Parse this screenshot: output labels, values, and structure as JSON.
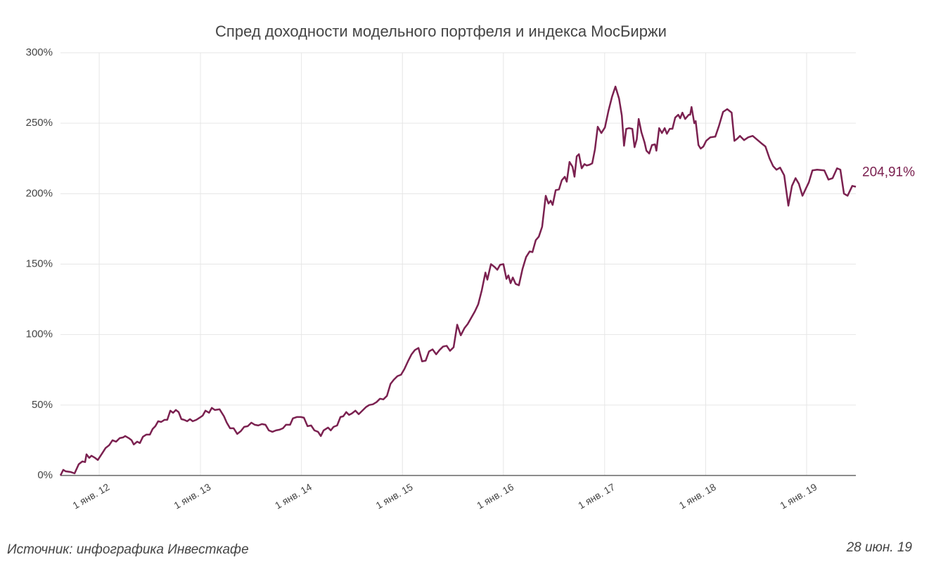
{
  "chart_data": {
    "type": "line",
    "title": "Спред доходности модельного портфеля и индекса МосБиржи",
    "source": "Источник: инфографика Инвесткафе",
    "date": "28 июн. 19",
    "grid": true,
    "xlim": [
      "2011-08-14",
      "2019-06-28"
    ],
    "xticks": [
      {
        "value": "2012-01-01",
        "label": "1 янв. 12"
      },
      {
        "value": "2013-01-01",
        "label": "1 янв. 13"
      },
      {
        "value": "2014-01-01",
        "label": "1 янв. 14"
      },
      {
        "value": "2015-01-01",
        "label": "1 янв. 15"
      },
      {
        "value": "2016-01-01",
        "label": "1 янв. 16"
      },
      {
        "value": "2017-01-01",
        "label": "1 янв. 17"
      },
      {
        "value": "2018-01-01",
        "label": "1 янв. 18"
      },
      {
        "value": "2019-01-01",
        "label": "1 янв. 19"
      }
    ],
    "ylim": [
      0,
      300
    ],
    "yticks": [
      {
        "value": 0,
        "label": "0%"
      },
      {
        "value": 50,
        "label": "50%"
      },
      {
        "value": 100,
        "label": "100%"
      },
      {
        "value": 150,
        "label": "150%"
      },
      {
        "value": 200,
        "label": "200%"
      },
      {
        "value": 250,
        "label": "250%"
      },
      {
        "value": 300,
        "label": "300%"
      }
    ],
    "x": [
      "2011-08-14",
      "2011-08-24",
      "2011-09-01",
      "2011-09-19",
      "2011-10-04",
      "2011-10-19",
      "2011-11-01",
      "2011-11-11",
      "2011-11-16",
      "2011-11-26",
      "2011-12-04",
      "2011-12-17",
      "2011-12-27",
      "2012-01-11",
      "2012-01-24",
      "2012-02-06",
      "2012-02-18",
      "2012-03-02",
      "2012-03-15",
      "2012-03-27",
      "2012-04-04",
      "2012-04-17",
      "2012-04-27",
      "2012-05-05",
      "2012-05-17",
      "2012-05-27",
      "2012-06-07",
      "2012-06-19",
      "2012-07-02",
      "2012-07-12",
      "2012-07-22",
      "2012-08-01",
      "2012-08-12",
      "2012-08-24",
      "2012-09-03",
      "2012-09-14",
      "2012-09-24",
      "2012-10-04",
      "2012-10-14",
      "2012-10-24",
      "2012-11-03",
      "2012-11-14",
      "2012-11-24",
      "2012-12-04",
      "2012-12-17",
      "2012-12-29",
      "2013-01-09",
      "2013-01-19",
      "2013-02-01",
      "2013-02-11",
      "2013-02-22",
      "2013-03-11",
      "2013-03-27",
      "2013-04-06",
      "2013-04-18",
      "2013-05-01",
      "2013-05-14",
      "2013-05-27",
      "2013-06-08",
      "2013-06-21",
      "2013-07-04",
      "2013-07-16",
      "2013-07-29",
      "2013-08-11",
      "2013-08-24",
      "2013-09-05",
      "2013-09-18",
      "2013-10-01",
      "2013-10-14",
      "2013-10-26",
      "2013-11-06",
      "2013-11-21",
      "2013-12-01",
      "2013-12-16",
      "2013-12-30",
      "2014-01-10",
      "2014-01-23",
      "2014-02-05",
      "2014-02-17",
      "2014-03-02",
      "2014-03-12",
      "2014-03-22",
      "2014-04-07",
      "2014-04-17",
      "2014-04-27",
      "2014-05-10",
      "2014-05-22",
      "2014-06-01",
      "2014-06-12",
      "2014-06-22",
      "2014-07-02",
      "2014-07-15",
      "2014-07-27",
      "2014-08-09",
      "2014-08-22",
      "2014-09-03",
      "2014-09-16",
      "2014-09-29",
      "2014-10-12",
      "2014-10-24",
      "2014-11-06",
      "2014-11-19",
      "2014-12-01",
      "2014-12-14",
      "2014-12-27",
      "2015-01-08",
      "2015-01-21",
      "2015-02-03",
      "2015-02-15",
      "2015-02-28",
      "2015-03-13",
      "2015-03-26",
      "2015-04-07",
      "2015-04-20",
      "2015-05-03",
      "2015-05-15",
      "2015-05-28",
      "2015-06-10",
      "2015-06-22",
      "2015-07-05",
      "2015-07-18",
      "2015-07-31",
      "2015-08-13",
      "2015-08-25",
      "2015-09-07",
      "2015-09-20",
      "2015-10-02",
      "2015-10-15",
      "2015-10-28",
      "2015-11-04",
      "2015-11-17",
      "2015-11-30",
      "2015-12-10",
      "2015-12-20",
      "2016-01-01",
      "2016-01-12",
      "2016-01-19",
      "2016-01-27",
      "2016-02-04",
      "2016-02-14",
      "2016-02-26",
      "2016-03-10",
      "2016-03-23",
      "2016-04-05",
      "2016-04-15",
      "2016-04-27",
      "2016-05-08",
      "2016-05-20",
      "2016-06-02",
      "2016-06-12",
      "2016-06-20",
      "2016-06-27",
      "2016-07-08",
      "2016-07-20",
      "2016-07-30",
      "2016-08-10",
      "2016-08-17",
      "2016-08-27",
      "2016-09-07",
      "2016-09-14",
      "2016-09-22",
      "2016-09-30",
      "2016-10-10",
      "2016-10-20",
      "2016-10-28",
      "2016-11-07",
      "2016-11-17",
      "2016-11-27",
      "2016-12-07",
      "2016-12-20",
      "2017-01-02",
      "2017-01-15",
      "2017-01-28",
      "2017-02-09",
      "2017-02-22",
      "2017-03-04",
      "2017-03-12",
      "2017-03-20",
      "2017-03-30",
      "2017-04-11",
      "2017-04-19",
      "2017-04-27",
      "2017-05-04",
      "2017-05-14",
      "2017-05-25",
      "2017-06-01",
      "2017-06-11",
      "2017-06-21",
      "2017-07-02",
      "2017-07-07",
      "2017-07-17",
      "2017-07-27",
      "2017-08-06",
      "2017-08-14",
      "2017-08-24",
      "2017-09-03",
      "2017-09-13",
      "2017-09-24",
      "2017-10-01",
      "2017-10-09",
      "2017-10-19",
      "2017-11-01",
      "2017-11-06",
      "2017-11-11",
      "2017-11-21",
      "2017-11-26",
      "2017-12-06",
      "2017-12-14",
      "2017-12-24",
      "2018-01-03",
      "2018-01-18",
      "2018-02-05",
      "2018-02-18",
      "2018-03-05",
      "2018-03-20",
      "2018-04-05",
      "2018-04-15",
      "2018-04-25",
      "2018-05-05",
      "2018-05-20",
      "2018-06-04",
      "2018-06-20",
      "2018-07-05",
      "2018-07-20",
      "2018-08-05",
      "2018-08-20",
      "2018-09-02",
      "2018-09-14",
      "2018-09-27",
      "2018-10-12",
      "2018-10-27",
      "2018-11-09",
      "2018-11-22",
      "2018-12-04",
      "2018-12-17",
      "2018-12-29",
      "2019-01-09",
      "2019-01-22",
      "2019-02-08",
      "2019-03-06",
      "2019-03-21",
      "2019-04-05",
      "2019-04-21",
      "2019-05-03",
      "2019-05-16",
      "2019-05-29",
      "2019-06-15",
      "2019-06-28"
    ],
    "series": [
      {
        "color": "#7b2150",
        "end_label": "204,91%",
        "values": [
          0,
          4,
          3,
          2.5,
          1.5,
          8,
          10,
          9.5,
          15,
          12.5,
          14,
          12.5,
          11,
          15.5,
          19.5,
          21.5,
          25,
          24,
          26.5,
          27,
          28,
          26.5,
          25,
          22,
          24,
          23,
          27.5,
          29,
          29,
          33,
          35,
          38.5,
          38,
          39.5,
          39.5,
          46,
          44.5,
          46.5,
          45,
          40,
          39.5,
          38.5,
          40,
          38.5,
          39.5,
          41,
          42.5,
          46,
          44.5,
          48,
          46.5,
          47,
          42,
          37.5,
          33.5,
          33.5,
          29.5,
          31.5,
          34.5,
          35,
          37.5,
          36,
          35.5,
          36.5,
          36,
          32,
          31,
          32,
          32.5,
          33.5,
          36,
          36,
          40.5,
          41.5,
          41.5,
          41,
          35,
          35.5,
          32,
          31,
          28,
          32,
          34,
          32,
          34.5,
          35.5,
          41.5,
          42,
          45,
          43,
          44,
          46,
          43.5,
          46,
          48.5,
          50,
          50.5,
          52,
          54.5,
          54,
          56.5,
          65,
          68,
          70.5,
          71.5,
          75.5,
          81,
          86,
          89,
          90.5,
          81,
          81.5,
          88,
          89.5,
          86,
          89,
          91.5,
          92,
          88.5,
          91,
          107,
          99.5,
          104.5,
          107.5,
          112,
          116.5,
          121.5,
          131.5,
          144,
          139,
          150,
          148,
          146,
          149.5,
          150,
          139.5,
          142,
          136.5,
          140.5,
          136,
          135,
          146.5,
          155,
          159,
          158.5,
          167,
          169.5,
          176.5,
          198.5,
          193,
          195,
          192,
          202.5,
          203,
          209.5,
          212,
          208.5,
          222.5,
          219,
          212,
          226.5,
          228,
          218,
          221,
          220,
          220.5,
          221.5,
          231.5,
          247.5,
          243,
          247,
          259,
          269,
          276,
          267.5,
          255.5,
          234,
          246,
          246.5,
          246,
          233,
          238.5,
          253,
          243.5,
          236.5,
          230.5,
          228.5,
          234.5,
          235,
          230.5,
          246.5,
          243,
          246.5,
          242.5,
          246,
          246,
          254,
          256,
          253.5,
          257.5,
          253,
          256,
          256,
          261.5,
          250,
          251.5,
          234.5,
          232,
          233.5,
          237.5,
          240,
          240.5,
          248,
          258,
          260,
          257.5,
          237.5,
          239,
          241,
          238,
          240,
          241,
          238.5,
          236,
          233.5,
          225,
          219.5,
          217,
          218.5,
          213,
          191.5,
          205.5,
          211,
          207,
          198.5,
          203.5,
          208,
          216.5,
          217,
          216.5,
          210,
          211,
          218,
          217,
          200,
          198.5,
          205.5,
          204.91
        ]
      }
    ]
  }
}
